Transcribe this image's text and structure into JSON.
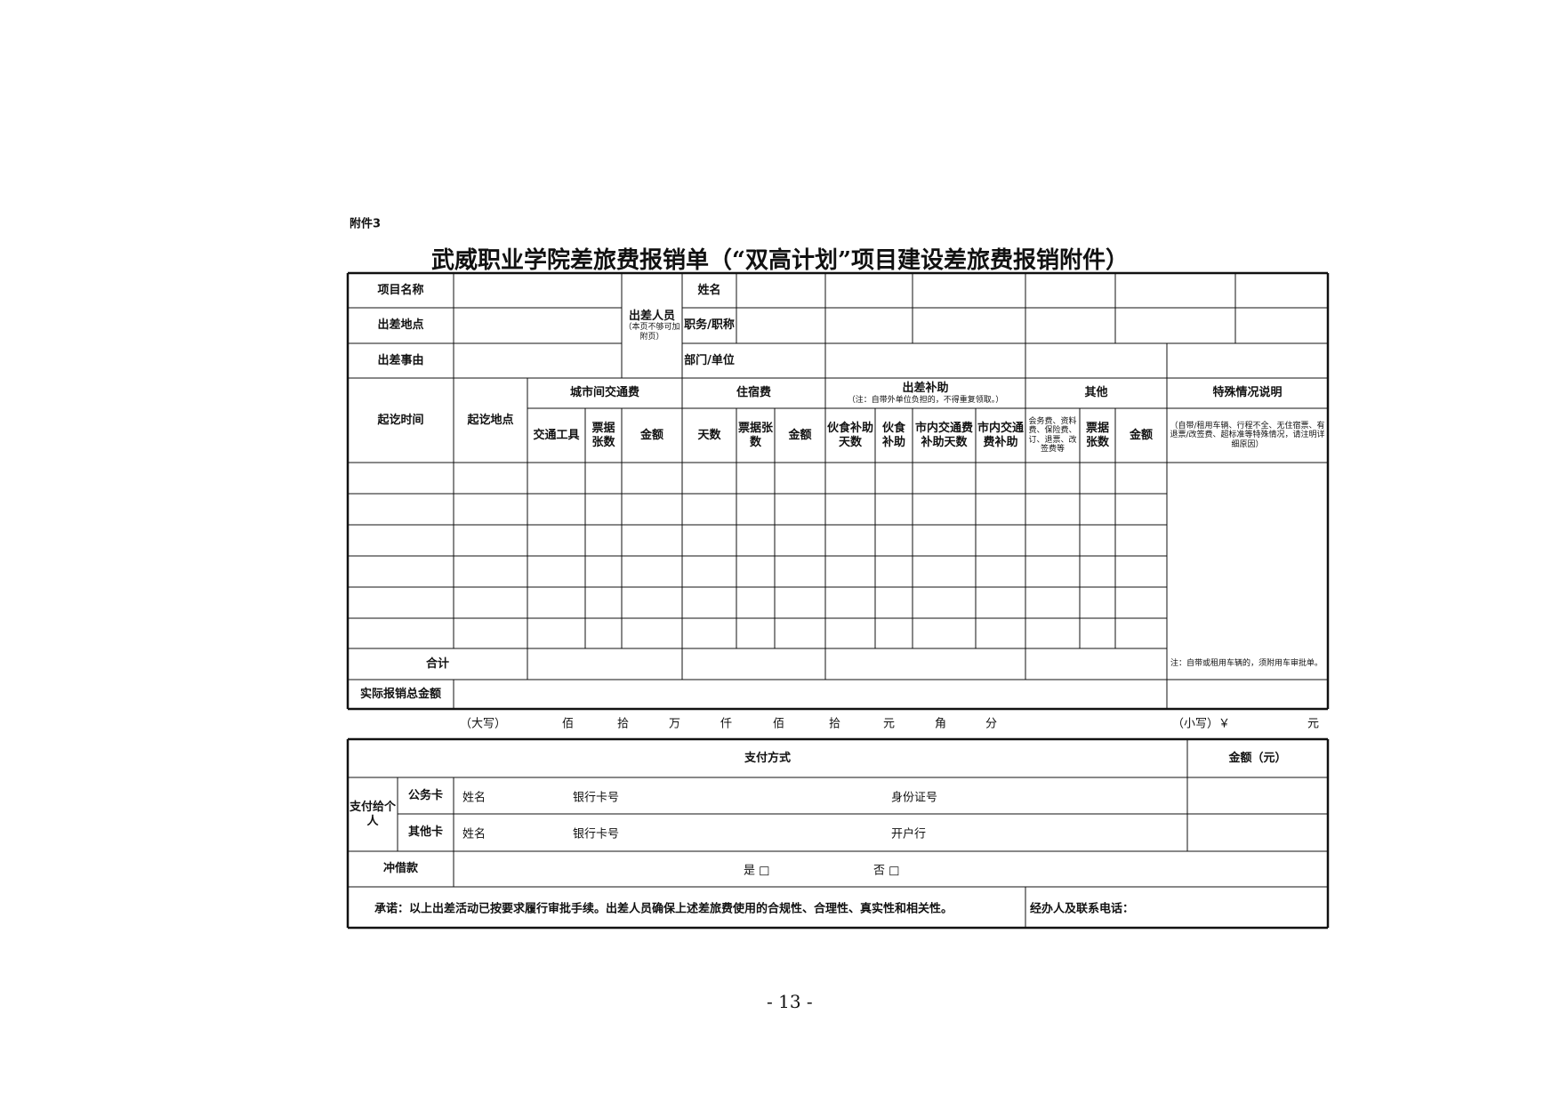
{
  "header": {
    "attachment": "附件3",
    "title": "武威职业学院差旅费报销单（“双高计划”项目建设差旅费报销附件）"
  },
  "info": {
    "project_name": "项目名称",
    "destination": "出差地点",
    "reason": "出差事由",
    "traveler": "出差人员",
    "traveler_note": "（本页不够可加附页）",
    "name": "姓名",
    "position": "职务/职称",
    "department": "部门/单位"
  },
  "columns": {
    "period": "起讫时间",
    "places": "起讫地点",
    "intercity": "城市间交通费",
    "vehicle": "交通工具",
    "intercity_tickets": "票据张数",
    "intercity_amount": "金额",
    "lodging": "住宿费",
    "days": "天数",
    "lodging_tickets": "票据张数",
    "lodging_amount": "金额",
    "allowance": "出差补助",
    "allowance_note": "（注：自带外单位负担的，不得重复领取。）",
    "meal_days": "伙食补助天数",
    "meal": "伙食补助",
    "local_days": "市内交通费补助天数",
    "local": "市内交通费补助",
    "other": "其他",
    "other_items": "会务费、资料费、保险费、订、退票、改签费等",
    "other_tickets": "票据张数",
    "other_amount": "金额",
    "special": "特殊情况说明",
    "special_note": "（自带/租用车辆、行程不全、无住宿票、有退票/改签费、超标准等特殊情况，请注明详细原因）"
  },
  "total": {
    "label": "合计",
    "note": "注：自带或租用车辆的，须附用车审批单。"
  },
  "actual": {
    "label": "实际报销总金额",
    "upper": "（大写）",
    "units": [
      "佰",
      "拾",
      "万",
      "仟",
      "佰",
      "拾",
      "元",
      "角",
      "分"
    ],
    "lower": "（小写）￥",
    "yuan": "元"
  },
  "payment": {
    "method": "支付方式",
    "amount": "金额（元）",
    "to_person": "支付给个人",
    "official_card": "公务卡",
    "other_card": "其他卡",
    "name1": "姓名",
    "card1": "银行卡号",
    "id": "身份证号",
    "name2": "姓名",
    "card2": "银行卡号",
    "bank": "开户行",
    "loan": "冲借款",
    "yes": "是 □",
    "no": "否 □",
    "promise": "承诺：以上出差活动已按要求履行审批手续。出差人员确保上述差旅费使用的合规性、合理性、真实性和相关性。",
    "handler": "经办人及联系电话："
  },
  "footer": {
    "page": "- 13 -"
  }
}
